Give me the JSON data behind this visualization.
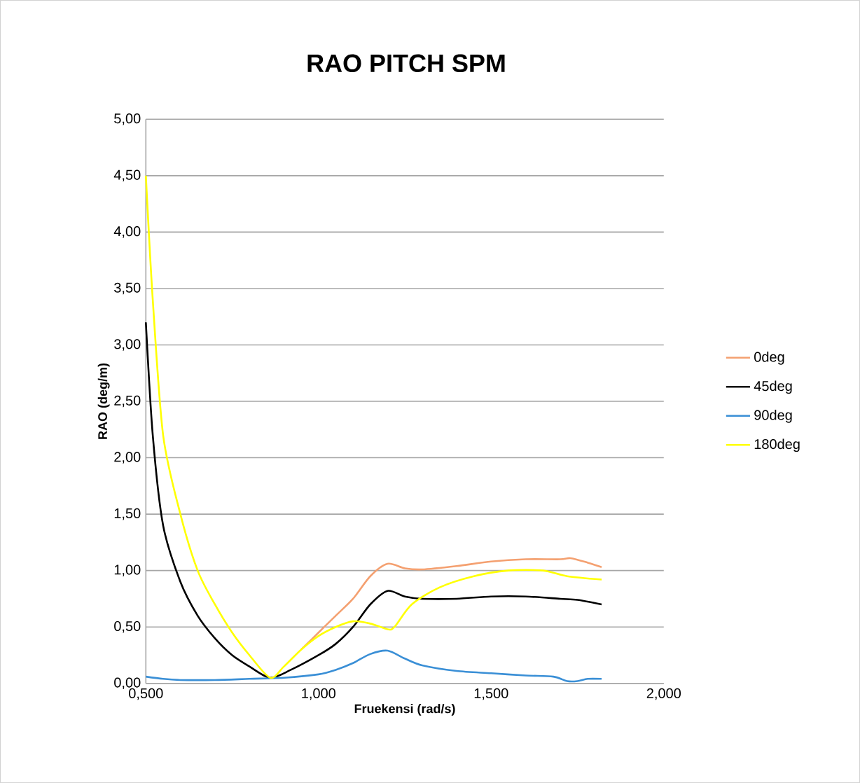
{
  "chart_data": {
    "type": "line",
    "title": "RAO PITCH SPM",
    "xlabel": "Fruekensi (rad/s)",
    "ylabel": "RAO (deg/m)",
    "xlim": [
      0.5,
      2.0
    ],
    "xticks": [
      {
        "value": 0.5,
        "label": "0,500"
      },
      {
        "value": 1.0,
        "label": "1,000"
      },
      {
        "value": 1.5,
        "label": "1,500"
      },
      {
        "value": 2.0,
        "label": "2,000"
      }
    ],
    "ylim": [
      0,
      5
    ],
    "yticks": [
      {
        "value": 0,
        "label": "0,00"
      },
      {
        "value": 0.5,
        "label": "0,50"
      },
      {
        "value": 1.0,
        "label": "1,00"
      },
      {
        "value": 1.5,
        "label": "1,50"
      },
      {
        "value": 2.0,
        "label": "2,00"
      },
      {
        "value": 2.5,
        "label": "2,50"
      },
      {
        "value": 3.0,
        "label": "3,00"
      },
      {
        "value": 3.5,
        "label": "3,50"
      },
      {
        "value": 4.0,
        "label": "4,00"
      },
      {
        "value": 4.5,
        "label": "4,50"
      },
      {
        "value": 5.0,
        "label": "5,00"
      }
    ],
    "grid": "y",
    "legend": "right",
    "marker": "none",
    "line_style": "solid",
    "series": [
      {
        "name": "0deg",
        "color": "#f4a070",
        "x": [
          0.95,
          1.0,
          1.05,
          1.1,
          1.15,
          1.2,
          1.25,
          1.3,
          1.4,
          1.5,
          1.6,
          1.7,
          1.73,
          1.78,
          1.82
        ],
        "values": [
          0.3,
          0.45,
          0.6,
          0.75,
          0.95,
          1.06,
          1.02,
          1.01,
          1.04,
          1.08,
          1.1,
          1.1,
          1.11,
          1.07,
          1.03
        ]
      },
      {
        "name": "45deg",
        "color": "#000000",
        "x": [
          0.5,
          0.52,
          0.55,
          0.6,
          0.65,
          0.7,
          0.75,
          0.8,
          0.86,
          0.92,
          1.0,
          1.05,
          1.1,
          1.15,
          1.2,
          1.25,
          1.3,
          1.4,
          1.5,
          1.6,
          1.7,
          1.75,
          1.82
        ],
        "values": [
          3.2,
          2.2,
          1.4,
          0.9,
          0.6,
          0.4,
          0.25,
          0.15,
          0.05,
          0.12,
          0.25,
          0.35,
          0.5,
          0.7,
          0.82,
          0.77,
          0.75,
          0.75,
          0.77,
          0.77,
          0.75,
          0.74,
          0.7
        ]
      },
      {
        "name": "90deg",
        "color": "#3a8fd6",
        "x": [
          0.5,
          0.55,
          0.6,
          0.7,
          0.8,
          0.9,
          1.0,
          1.05,
          1.1,
          1.15,
          1.2,
          1.25,
          1.3,
          1.4,
          1.5,
          1.6,
          1.68,
          1.72,
          1.75,
          1.78,
          1.82
        ],
        "values": [
          0.06,
          0.04,
          0.03,
          0.03,
          0.04,
          0.05,
          0.08,
          0.12,
          0.18,
          0.26,
          0.29,
          0.22,
          0.16,
          0.11,
          0.09,
          0.07,
          0.06,
          0.02,
          0.02,
          0.04,
          0.04
        ]
      },
      {
        "name": "180deg",
        "color": "#ffff00",
        "x": [
          0.5,
          0.52,
          0.55,
          0.6,
          0.65,
          0.7,
          0.75,
          0.8,
          0.86,
          0.9,
          0.95,
          1.0,
          1.05,
          1.1,
          1.15,
          1.2,
          1.22,
          1.27,
          1.35,
          1.45,
          1.55,
          1.65,
          1.72,
          1.82
        ],
        "values": [
          4.5,
          3.4,
          2.2,
          1.5,
          1.0,
          0.7,
          0.45,
          0.25,
          0.05,
          0.15,
          0.3,
          0.42,
          0.5,
          0.55,
          0.53,
          0.48,
          0.5,
          0.7,
          0.85,
          0.95,
          1.0,
          1.0,
          0.95,
          0.92
        ]
      }
    ]
  }
}
